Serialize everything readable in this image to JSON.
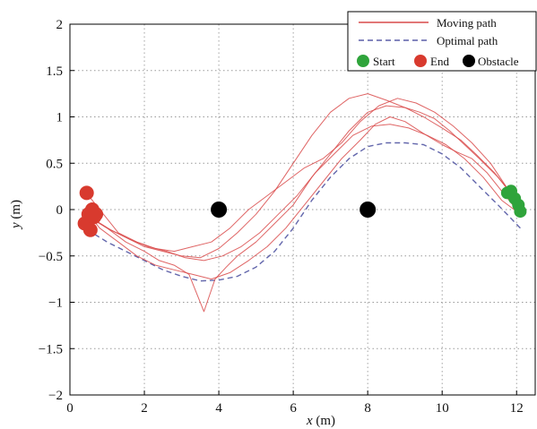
{
  "chart_data": {
    "type": "line",
    "title": "",
    "xlabel": {
      "var": "x",
      "unit": " (m)"
    },
    "ylabel": {
      "var": "y",
      "unit": " (m)"
    },
    "xlim": [
      0,
      12.5
    ],
    "ylim": [
      -2,
      2
    ],
    "xticks": [
      0,
      2,
      4,
      6,
      8,
      10,
      12
    ],
    "yticks": [
      -2,
      -1.5,
      -1,
      -0.5,
      0,
      0.5,
      1,
      1.5,
      2
    ],
    "xtick_labels": [
      "0",
      "2",
      "4",
      "6",
      "8",
      "10",
      "12"
    ],
    "ytick_labels": [
      "−2",
      "−1.5",
      "−1",
      "−0.5",
      "0",
      "0.5",
      "1",
      "1.5",
      "2"
    ],
    "grid": true,
    "grid_style": "dotted",
    "legend_position": "top-right",
    "legend": {
      "moving_path": "Moving path",
      "optimal_path": "Optimal path",
      "start": "Start",
      "end": "End",
      "obstacle": "Obstacle"
    },
    "colors": {
      "moving_path": "#d94a4a",
      "optimal_path": "#5b5fa8",
      "start": "#2fa43b",
      "end": "#d83a2e",
      "obstacle": "#000000"
    },
    "obstacles": [
      {
        "x": 4.0,
        "y": 0.0
      },
      {
        "x": 8.0,
        "y": 0.0
      }
    ],
    "start_points": [
      {
        "x": 11.75,
        "y": 0.18
      },
      {
        "x": 11.95,
        "y": 0.12
      },
      {
        "x": 12.05,
        "y": 0.05
      },
      {
        "x": 12.1,
        "y": -0.02
      },
      {
        "x": 11.85,
        "y": 0.2
      }
    ],
    "end_points": [
      {
        "x": 0.45,
        "y": 0.18
      },
      {
        "x": 0.4,
        "y": -0.15
      },
      {
        "x": 0.5,
        "y": -0.05
      },
      {
        "x": 0.65,
        "y": -0.08
      },
      {
        "x": 0.55,
        "y": -0.22
      },
      {
        "x": 0.7,
        "y": -0.05
      },
      {
        "x": 0.6,
        "y": 0.0
      }
    ],
    "series": [
      {
        "name": "Optimal path",
        "style": "dashed",
        "x": [
          12.1,
          11.5,
          11.0,
          10.5,
          10.0,
          9.5,
          9.0,
          8.5,
          8.0,
          7.5,
          7.0,
          6.5,
          6.0,
          5.5,
          5.0,
          4.5,
          4.0,
          3.5,
          3.0,
          2.5,
          2.0,
          1.5,
          1.0,
          0.6
        ],
        "y": [
          -0.2,
          0.05,
          0.25,
          0.45,
          0.6,
          0.7,
          0.72,
          0.72,
          0.68,
          0.55,
          0.35,
          0.1,
          -0.2,
          -0.45,
          -0.62,
          -0.72,
          -0.76,
          -0.77,
          -0.72,
          -0.65,
          -0.55,
          -0.45,
          -0.35,
          -0.25
        ]
      },
      {
        "name": "Moving path",
        "x": [
          12.0,
          11.5,
          11.0,
          10.6,
          10.2,
          9.8,
          9.4,
          9.0,
          8.5,
          8.0,
          7.5,
          7.0,
          6.5,
          6.0,
          5.5,
          5.0,
          4.5,
          4.2,
          3.9,
          3.6,
          3.2,
          2.8,
          2.4,
          2.0,
          1.5,
          1.0,
          0.6
        ],
        "y": [
          0.1,
          0.35,
          0.55,
          0.7,
          0.85,
          0.98,
          1.05,
          1.1,
          1.12,
          1.05,
          0.85,
          0.6,
          0.35,
          0.05,
          -0.15,
          -0.35,
          -0.5,
          -0.62,
          -0.75,
          -1.1,
          -0.7,
          -0.6,
          -0.55,
          -0.45,
          -0.35,
          -0.2,
          -0.1
        ]
      },
      {
        "name": "Moving path",
        "x": [
          11.9,
          11.4,
          10.9,
          10.5,
          10.0,
          9.5,
          9.0,
          8.5,
          8.0,
          7.5,
          7.0,
          6.5,
          6.0,
          5.5,
          5.0,
          4.5,
          4.0,
          3.5,
          3.0,
          2.5,
          2.0,
          1.5,
          1.0,
          0.6
        ],
        "y": [
          0.15,
          0.4,
          0.6,
          0.75,
          0.88,
          1.0,
          1.1,
          1.18,
          1.25,
          1.2,
          1.05,
          0.8,
          0.5,
          0.2,
          -0.05,
          -0.25,
          -0.42,
          -0.52,
          -0.5,
          -0.45,
          -0.4,
          -0.3,
          -0.2,
          -0.1
        ]
      },
      {
        "name": "Moving path",
        "x": [
          12.0,
          11.6,
          11.2,
          10.8,
          10.4,
          10.0,
          9.5,
          9.0,
          8.6,
          8.2,
          7.8,
          7.3,
          6.8,
          6.3,
          5.8,
          5.3,
          4.8,
          4.3,
          3.8,
          3.3,
          2.8,
          2.3,
          1.8,
          1.3,
          0.8,
          0.5
        ],
        "y": [
          0.0,
          0.2,
          0.4,
          0.55,
          0.62,
          0.7,
          0.82,
          0.95,
          1.0,
          0.92,
          0.75,
          0.55,
          0.3,
          0.05,
          -0.2,
          -0.4,
          -0.55,
          -0.68,
          -0.75,
          -0.7,
          -0.65,
          -0.6,
          -0.5,
          -0.35,
          -0.2,
          -0.05
        ]
      },
      {
        "name": "Moving path",
        "x": [
          11.8,
          11.3,
          10.8,
          10.3,
          9.8,
          9.3,
          8.8,
          8.3,
          7.8,
          7.3,
          6.8,
          6.3,
          5.8,
          5.3,
          4.8,
          4.3,
          3.8,
          3.3,
          2.8,
          2.3,
          1.8,
          1.3,
          0.9,
          0.5
        ],
        "y": [
          0.2,
          0.5,
          0.72,
          0.9,
          1.05,
          1.15,
          1.2,
          1.12,
          0.95,
          0.72,
          0.55,
          0.45,
          0.3,
          0.15,
          0.0,
          -0.2,
          -0.35,
          -0.4,
          -0.45,
          -0.42,
          -0.35,
          -0.25,
          -0.05,
          0.15
        ]
      },
      {
        "name": "Moving path",
        "x": [
          12.1,
          11.6,
          11.1,
          10.6,
          10.1,
          9.6,
          9.1,
          8.6,
          8.1,
          7.6,
          7.1,
          6.6,
          6.1,
          5.6,
          5.1,
          4.6,
          4.1,
          3.6,
          3.1,
          2.6,
          2.1,
          1.6,
          1.1,
          0.7
        ],
        "y": [
          -0.05,
          0.1,
          0.35,
          0.55,
          0.7,
          0.8,
          0.88,
          0.92,
          0.9,
          0.8,
          0.6,
          0.4,
          0.15,
          -0.05,
          -0.25,
          -0.4,
          -0.5,
          -0.55,
          -0.52,
          -0.45,
          -0.4,
          -0.32,
          -0.22,
          -0.12
        ]
      }
    ]
  }
}
